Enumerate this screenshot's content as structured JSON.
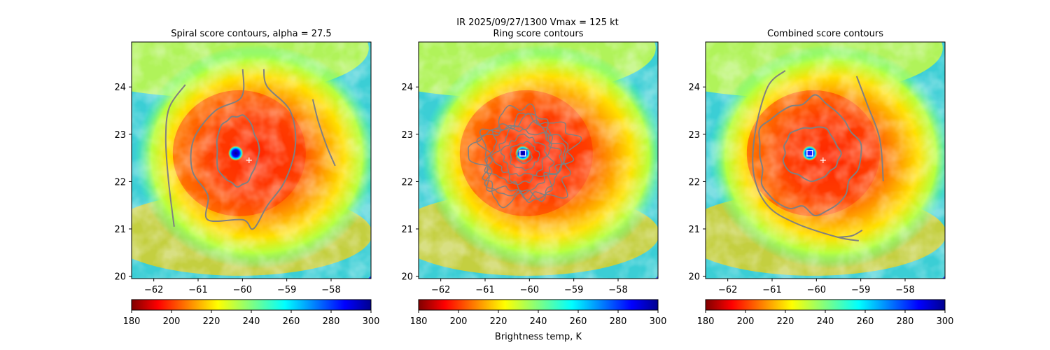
{
  "suptitle": "IR  2025/09/27/1300    Vmax = 125 kt",
  "colorbar_label": "Brightness temp, K",
  "colors": {
    "contour": "#808080",
    "center_marker": "#ffffff",
    "eye_marker_fill": "#1a1aff"
  },
  "chart_data": [
    {
      "type": "heatmap",
      "title": "Spiral score contours, alpha = 27.5",
      "xlim": [
        -62.5,
        -57.1
      ],
      "ylim": [
        19.95,
        24.95
      ],
      "xticks": [
        -62,
        -61,
        -60,
        -59,
        -58
      ],
      "yticks": [
        20,
        21,
        22,
        23,
        24
      ],
      "colorbar": {
        "cmap": "jet_r",
        "range": [
          180,
          300
        ],
        "ticks": [
          180,
          200,
          220,
          240,
          260,
          280,
          300
        ]
      },
      "eye_center": [
        -60.15,
        22.6
      ],
      "best_track_center": [
        -59.85,
        22.45
      ],
      "contour_style": "spiral",
      "markers": [
        "plus"
      ]
    },
    {
      "type": "heatmap",
      "title": "Ring score contours",
      "xlim": [
        -62.5,
        -57.1
      ],
      "ylim": [
        19.95,
        24.95
      ],
      "xticks": [
        -62,
        -61,
        -60,
        -59,
        -58
      ],
      "yticks": [
        20,
        21,
        22,
        23,
        24
      ],
      "colorbar": {
        "cmap": "jet_r",
        "range": [
          180,
          300
        ],
        "ticks": [
          180,
          200,
          220,
          240,
          260,
          280,
          300
        ]
      },
      "eye_center": [
        -60.15,
        22.6
      ],
      "best_track_center": [
        -59.85,
        22.45
      ],
      "contour_style": "ring",
      "markers": [
        "square"
      ]
    },
    {
      "type": "heatmap",
      "title": "Combined score contours",
      "xlim": [
        -62.5,
        -57.1
      ],
      "ylim": [
        19.95,
        24.95
      ],
      "xticks": [
        -62,
        -61,
        -60,
        -59,
        -58
      ],
      "yticks": [
        20,
        21,
        22,
        23,
        24
      ],
      "colorbar": {
        "cmap": "jet_r",
        "range": [
          180,
          300
        ],
        "ticks": [
          180,
          200,
          220,
          240,
          260,
          280,
          300
        ]
      },
      "eye_center": [
        -60.15,
        22.6
      ],
      "best_track_center": [
        -59.85,
        22.45
      ],
      "contour_style": "combined",
      "markers": [
        "plus",
        "square"
      ]
    }
  ]
}
